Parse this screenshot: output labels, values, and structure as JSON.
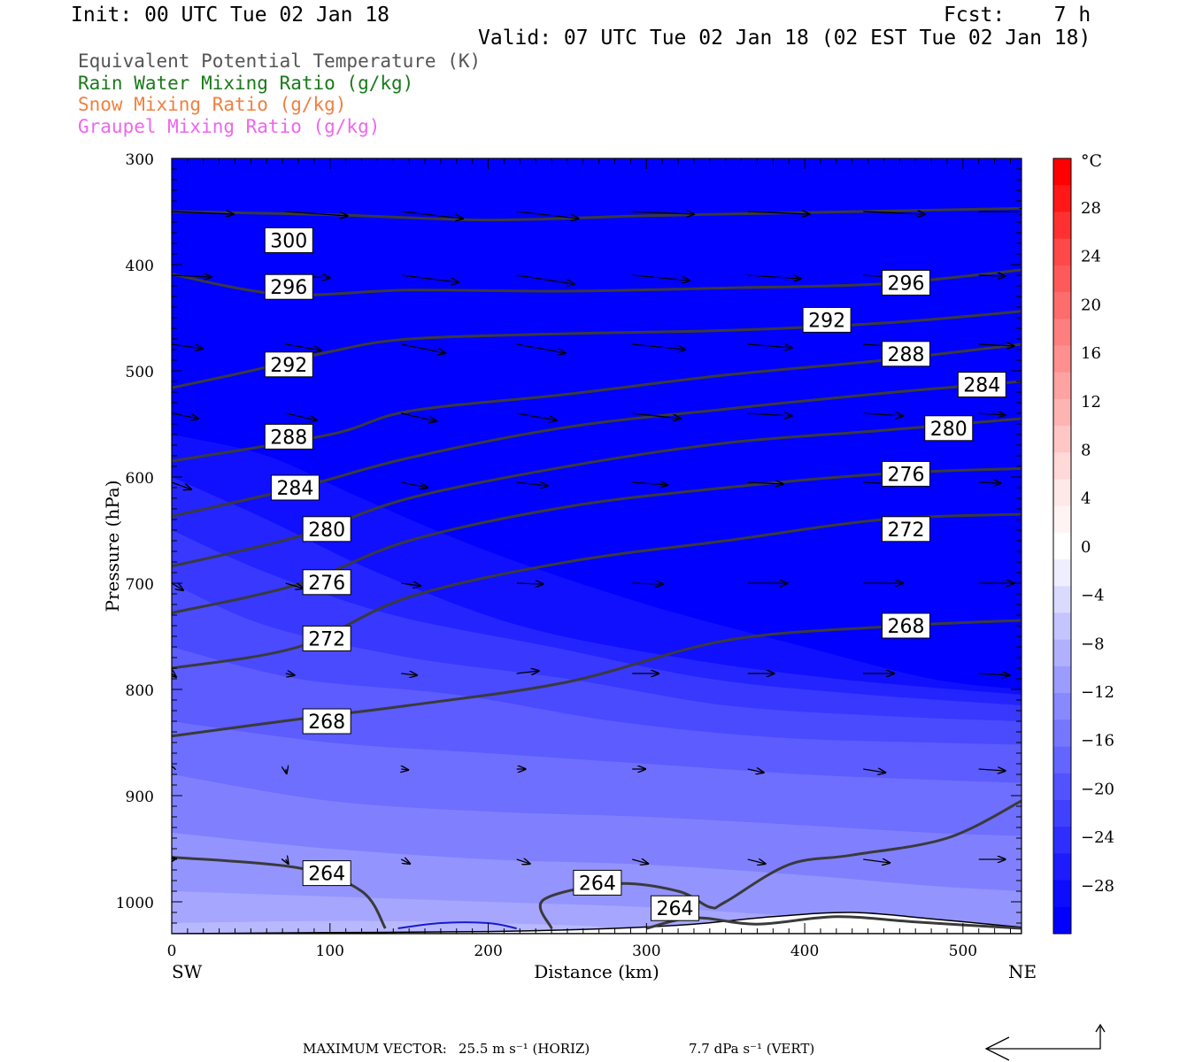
{
  "header": {
    "init": "Init: 00 UTC Tue 02 Jan 18",
    "fcst": "Fcst:    7 h",
    "valid": "Valid: 07 UTC Tue 02 Jan 18 (02 EST Tue 02 Jan 18)"
  },
  "legend": [
    {
      "label": "Equivalent Potential Temperature (K)",
      "color": "#555555"
    },
    {
      "label": "Rain Water Mixing Ratio (g/kg)",
      "color": "#1a7a1a"
    },
    {
      "label": "Snow Mixing Ratio (g/kg)",
      "color": "#f08040"
    },
    {
      "label": "Graupel Mixing Ratio (g/kg)",
      "color": "#ee66ee"
    }
  ],
  "footer": {
    "max_vector_label": "MAXIMUM VECTOR:",
    "horiz": "25.5 m s⁻¹ (HORIZ)",
    "vert": "7.7 dPa s⁻¹ (VERT)"
  },
  "chart_data": {
    "type": "contour-cross-section",
    "xlabel": "Distance (km)",
    "ylabel": "Pressure (hPa)",
    "xlim": [
      0,
      537
    ],
    "ylim": [
      1030,
      300
    ],
    "x_ticks": [
      0,
      100,
      200,
      300,
      400,
      500
    ],
    "y_ticks": [
      300,
      400,
      500,
      600,
      700,
      800,
      900,
      1000
    ],
    "x_end_labels": {
      "left": "SW",
      "right": "NE"
    },
    "colorbar": {
      "unit": "°C",
      "tick_labels": [
        "28",
        "24",
        "20",
        "16",
        "12",
        "8",
        "4",
        "0",
        "−4",
        "−8",
        "−12",
        "−16",
        "−20",
        "−24",
        "−28"
      ],
      "positive_colors": [
        "#ff0000",
        "#ff1818",
        "#ff3030",
        "#ff4848",
        "#ff5a5a",
        "#ff6c6c",
        "#ff7e7e",
        "#ff9090",
        "#ffa2a2",
        "#ffb4b4",
        "#ffc6c6",
        "#ffd8d8",
        "#ffe8e8",
        "#fff4f4",
        "#ffffff"
      ],
      "negative_colors": [
        "#eeeeff",
        "#dadaff",
        "#c4c4ff",
        "#b0b0ff",
        "#9c9cff",
        "#8888ff",
        "#7676ff",
        "#6464ff",
        "#5252ff",
        "#4040ff",
        "#2e2eff",
        "#1c1cff",
        "#0c0cff",
        "#0000ff"
      ]
    },
    "theta_e_contours": [
      {
        "label": "300",
        "points": [
          [
            0,
            350
          ],
          [
            100,
            353
          ],
          [
            200,
            358
          ],
          [
            300,
            354
          ],
          [
            400,
            351
          ],
          [
            537,
            347
          ]
        ]
      },
      {
        "label": "296",
        "points": [
          [
            0,
            409
          ],
          [
            70,
            428
          ],
          [
            150,
            424
          ],
          [
            250,
            425
          ],
          [
            350,
            422
          ],
          [
            450,
            418
          ],
          [
            537,
            405
          ]
        ]
      },
      {
        "label": "292",
        "points": [
          [
            0,
            516
          ],
          [
            50,
            500
          ],
          [
            100,
            482
          ],
          [
            150,
            470
          ],
          [
            250,
            465
          ],
          [
            350,
            462
          ],
          [
            450,
            455
          ],
          [
            537,
            444
          ]
        ]
      },
      {
        "label": "288",
        "points": [
          [
            0,
            585
          ],
          [
            100,
            560
          ],
          [
            150,
            538
          ],
          [
            250,
            522
          ],
          [
            350,
            504
          ],
          [
            450,
            490
          ],
          [
            537,
            475
          ]
        ]
      },
      {
        "label": "284",
        "points": [
          [
            0,
            637
          ],
          [
            80,
            610
          ],
          [
            150,
            582
          ],
          [
            250,
            553
          ],
          [
            350,
            536
          ],
          [
            450,
            521
          ],
          [
            537,
            510
          ]
        ]
      },
      {
        "label": "280",
        "points": [
          [
            0,
            684
          ],
          [
            80,
            656
          ],
          [
            150,
            620
          ],
          [
            250,
            590
          ],
          [
            350,
            568
          ],
          [
            450,
            556
          ],
          [
            537,
            545
          ]
        ]
      },
      {
        "label": "276",
        "points": [
          [
            0,
            728
          ],
          [
            80,
            701
          ],
          [
            150,
            660
          ],
          [
            250,
            628
          ],
          [
            350,
            610
          ],
          [
            450,
            597
          ],
          [
            537,
            592
          ]
        ]
      },
      {
        "label": "272",
        "points": [
          [
            0,
            780
          ],
          [
            80,
            760
          ],
          [
            150,
            713
          ],
          [
            250,
            680
          ],
          [
            350,
            660
          ],
          [
            450,
            640
          ],
          [
            537,
            635
          ]
        ]
      },
      {
        "label": "268",
        "points": [
          [
            0,
            844
          ],
          [
            80,
            828
          ],
          [
            150,
            815
          ],
          [
            250,
            793
          ],
          [
            350,
            754
          ],
          [
            450,
            741
          ],
          [
            537,
            735
          ]
        ]
      },
      {
        "label": "264",
        "points": [
          [
            0,
            958
          ],
          [
            80,
            968
          ],
          [
            120,
            990
          ],
          [
            135,
            1025
          ]
        ]
      },
      {
        "label": "264",
        "points": [
          [
            240,
            1025
          ],
          [
            235,
            998
          ],
          [
            280,
            983
          ],
          [
            320,
            990
          ],
          [
            340,
            1005
          ],
          [
            350,
            1000
          ],
          [
            390,
            965
          ],
          [
            430,
            956
          ],
          [
            490,
            940
          ],
          [
            537,
            905
          ]
        ]
      },
      {
        "label": "264",
        "points": [
          [
            300,
            1025
          ],
          [
            330,
            1015
          ],
          [
            370,
            1021
          ],
          [
            420,
            1014
          ],
          [
            470,
            1019
          ],
          [
            537,
            1025
          ]
        ]
      }
    ],
    "contour_labels": [
      {
        "text": "300",
        "x": 74,
        "p": 377
      },
      {
        "text": "296",
        "x": 74,
        "p": 421
      },
      {
        "text": "292",
        "x": 74,
        "p": 494
      },
      {
        "text": "288",
        "x": 74,
        "p": 562
      },
      {
        "text": "284",
        "x": 78,
        "p": 610
      },
      {
        "text": "280",
        "x": 98,
        "p": 649
      },
      {
        "text": "276",
        "x": 98,
        "p": 699
      },
      {
        "text": "272",
        "x": 98,
        "p": 752
      },
      {
        "text": "268",
        "x": 98,
        "p": 830
      },
      {
        "text": "264",
        "x": 98,
        "p": 973
      },
      {
        "text": "264",
        "x": 269,
        "p": 982
      },
      {
        "text": "264",
        "x": 318,
        "p": 1006
      },
      {
        "text": "296",
        "x": 464,
        "p": 417
      },
      {
        "text": "292",
        "x": 414,
        "p": 452
      },
      {
        "text": "288",
        "x": 464,
        "p": 484
      },
      {
        "text": "284",
        "x": 512,
        "p": 513
      },
      {
        "text": "280",
        "x": 491,
        "p": 554
      },
      {
        "text": "276",
        "x": 464,
        "p": 597
      },
      {
        "text": "272",
        "x": 464,
        "p": 649
      },
      {
        "text": "268",
        "x": 464,
        "p": 740
      }
    ],
    "wind_vectors_note": "circulation vectors along section",
    "wind_rows": [
      {
        "p": 350,
        "u": [
          70,
          70,
          70,
          70,
          70,
          70,
          70,
          55
        ],
        "w": [
          -3,
          -5,
          -8,
          -8,
          -3,
          -3,
          -3,
          0
        ]
      },
      {
        "p": 410,
        "u": [
          45,
          50,
          65,
          65,
          65,
          60,
          50,
          30
        ],
        "w": [
          -2,
          -3,
          -8,
          -10,
          -6,
          -4,
          -3,
          -1
        ]
      },
      {
        "p": 475,
        "u": [
          35,
          40,
          50,
          55,
          60,
          50,
          45,
          40
        ],
        "w": [
          -5,
          -7,
          -10,
          -10,
          -6,
          -4,
          -3,
          -2
        ]
      },
      {
        "p": 540,
        "u": [
          30,
          35,
          40,
          45,
          55,
          50,
          45,
          30
        ],
        "w": [
          -6,
          -8,
          -9,
          -8,
          -6,
          -3,
          -3,
          -2
        ]
      },
      {
        "p": 605,
        "u": [
          22,
          30,
          30,
          35,
          40,
          40,
          40,
          25
        ],
        "w": [
          -8,
          -8,
          -6,
          -4,
          -3,
          -2,
          -2,
          -1
        ]
      },
      {
        "p": 700,
        "u": [
          13,
          20,
          22,
          30,
          35,
          45,
          45,
          40
        ],
        "w": [
          -8,
          -6,
          -3,
          -1,
          -1,
          0,
          0,
          0
        ]
      },
      {
        "p": 785,
        "u": [
          5,
          10,
          18,
          25,
          30,
          30,
          35,
          35
        ],
        "w": [
          -4,
          -2,
          -2,
          3,
          0,
          0,
          0,
          -2
        ]
      },
      {
        "p": 875,
        "u": [
          -3,
          1,
          8,
          10,
          15,
          18,
          25,
          30
        ],
        "w": [
          5,
          -5,
          -1,
          0,
          0,
          -4,
          -4,
          -2
        ]
      },
      {
        "p": 960,
        "u": [
          5,
          3,
          10,
          15,
          18,
          20,
          30,
          30
        ],
        "w": [
          1,
          -5,
          -5,
          -5,
          -5,
          -5,
          -4,
          0
        ]
      }
    ]
  }
}
